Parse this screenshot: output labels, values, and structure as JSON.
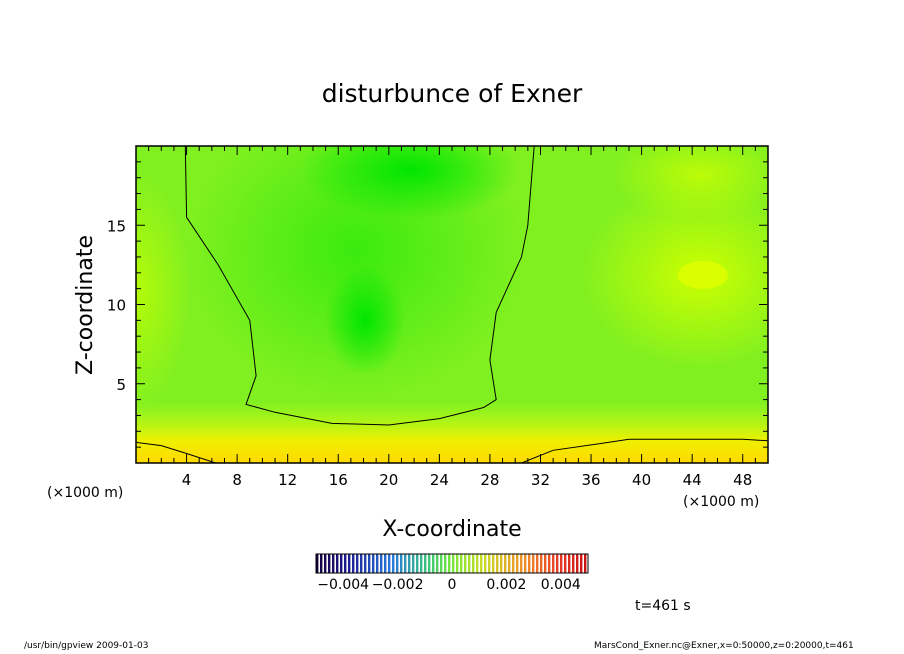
{
  "chart_data": {
    "type": "heatmap",
    "title": "disturbunce of Exner",
    "xlabel": "X-coordinate",
    "ylabel": "Z-coordinate",
    "x_unit": "(×1000 m)",
    "y_unit": "(×1000 m)",
    "xlim": [
      0,
      50
    ],
    "ylim": [
      0,
      20
    ],
    "x_ticks": [
      4,
      8,
      12,
      16,
      20,
      24,
      28,
      32,
      36,
      40,
      44,
      48
    ],
    "y_ticks": [
      5,
      10,
      15
    ],
    "colorbar": {
      "range": [
        -0.005,
        0.005
      ],
      "tick_labels": [
        "−0.004",
        "−0.002",
        "0",
        "0.002",
        "0.004"
      ],
      "tick_values": [
        -0.004,
        -0.002,
        0,
        0.002,
        0.004
      ]
    },
    "time_label": "t=461 s",
    "contours": [
      {
        "level": 0.0009,
        "points": [
          [
            3.9,
            20
          ],
          [
            4.0,
            15.5
          ],
          [
            6.5,
            12.5
          ],
          [
            9.0,
            9.0
          ],
          [
            9.5,
            5.5
          ],
          [
            8.7,
            3.7
          ],
          [
            11.0,
            3.2
          ],
          [
            15.5,
            2.5
          ],
          [
            20.0,
            2.4
          ],
          [
            24.0,
            2.8
          ],
          [
            27.5,
            3.5
          ],
          [
            28.5,
            4.0
          ],
          [
            28.0,
            6.5
          ],
          [
            28.5,
            9.5
          ],
          [
            30.5,
            13.0
          ],
          [
            31.0,
            15.0
          ],
          [
            31.5,
            20
          ]
        ]
      },
      {
        "level": 0.0025,
        "points": [
          [
            0,
            1.3
          ],
          [
            2.0,
            1.1
          ],
          [
            4.0,
            0.6
          ],
          [
            6.3,
            0
          ]
        ]
      },
      {
        "level": 0.0025,
        "points": [
          [
            30.5,
            0
          ],
          [
            33.0,
            0.8
          ],
          [
            36.5,
            1.2
          ],
          [
            39.0,
            1.5
          ],
          [
            44.0,
            1.5
          ],
          [
            48.0,
            1.5
          ],
          [
            50.0,
            1.4
          ]
        ]
      }
    ],
    "field_features": [
      {
        "x": 18,
        "z": 9,
        "value": -0.0008
      },
      {
        "x": 22,
        "z": 18,
        "value": -0.0008
      },
      {
        "x": 44,
        "z": 12,
        "value": 0.0018
      },
      {
        "x": 44,
        "z": 18,
        "value": 0.0014
      },
      {
        "x": 0,
        "z": 12,
        "value": 0.0012
      }
    ]
  },
  "footer": {
    "left": "/usr/bin/gpview   2009-01-03",
    "right": "MarsCond_Exner.nc@Exner,x=0:50000,z=0:20000,t=461"
  }
}
